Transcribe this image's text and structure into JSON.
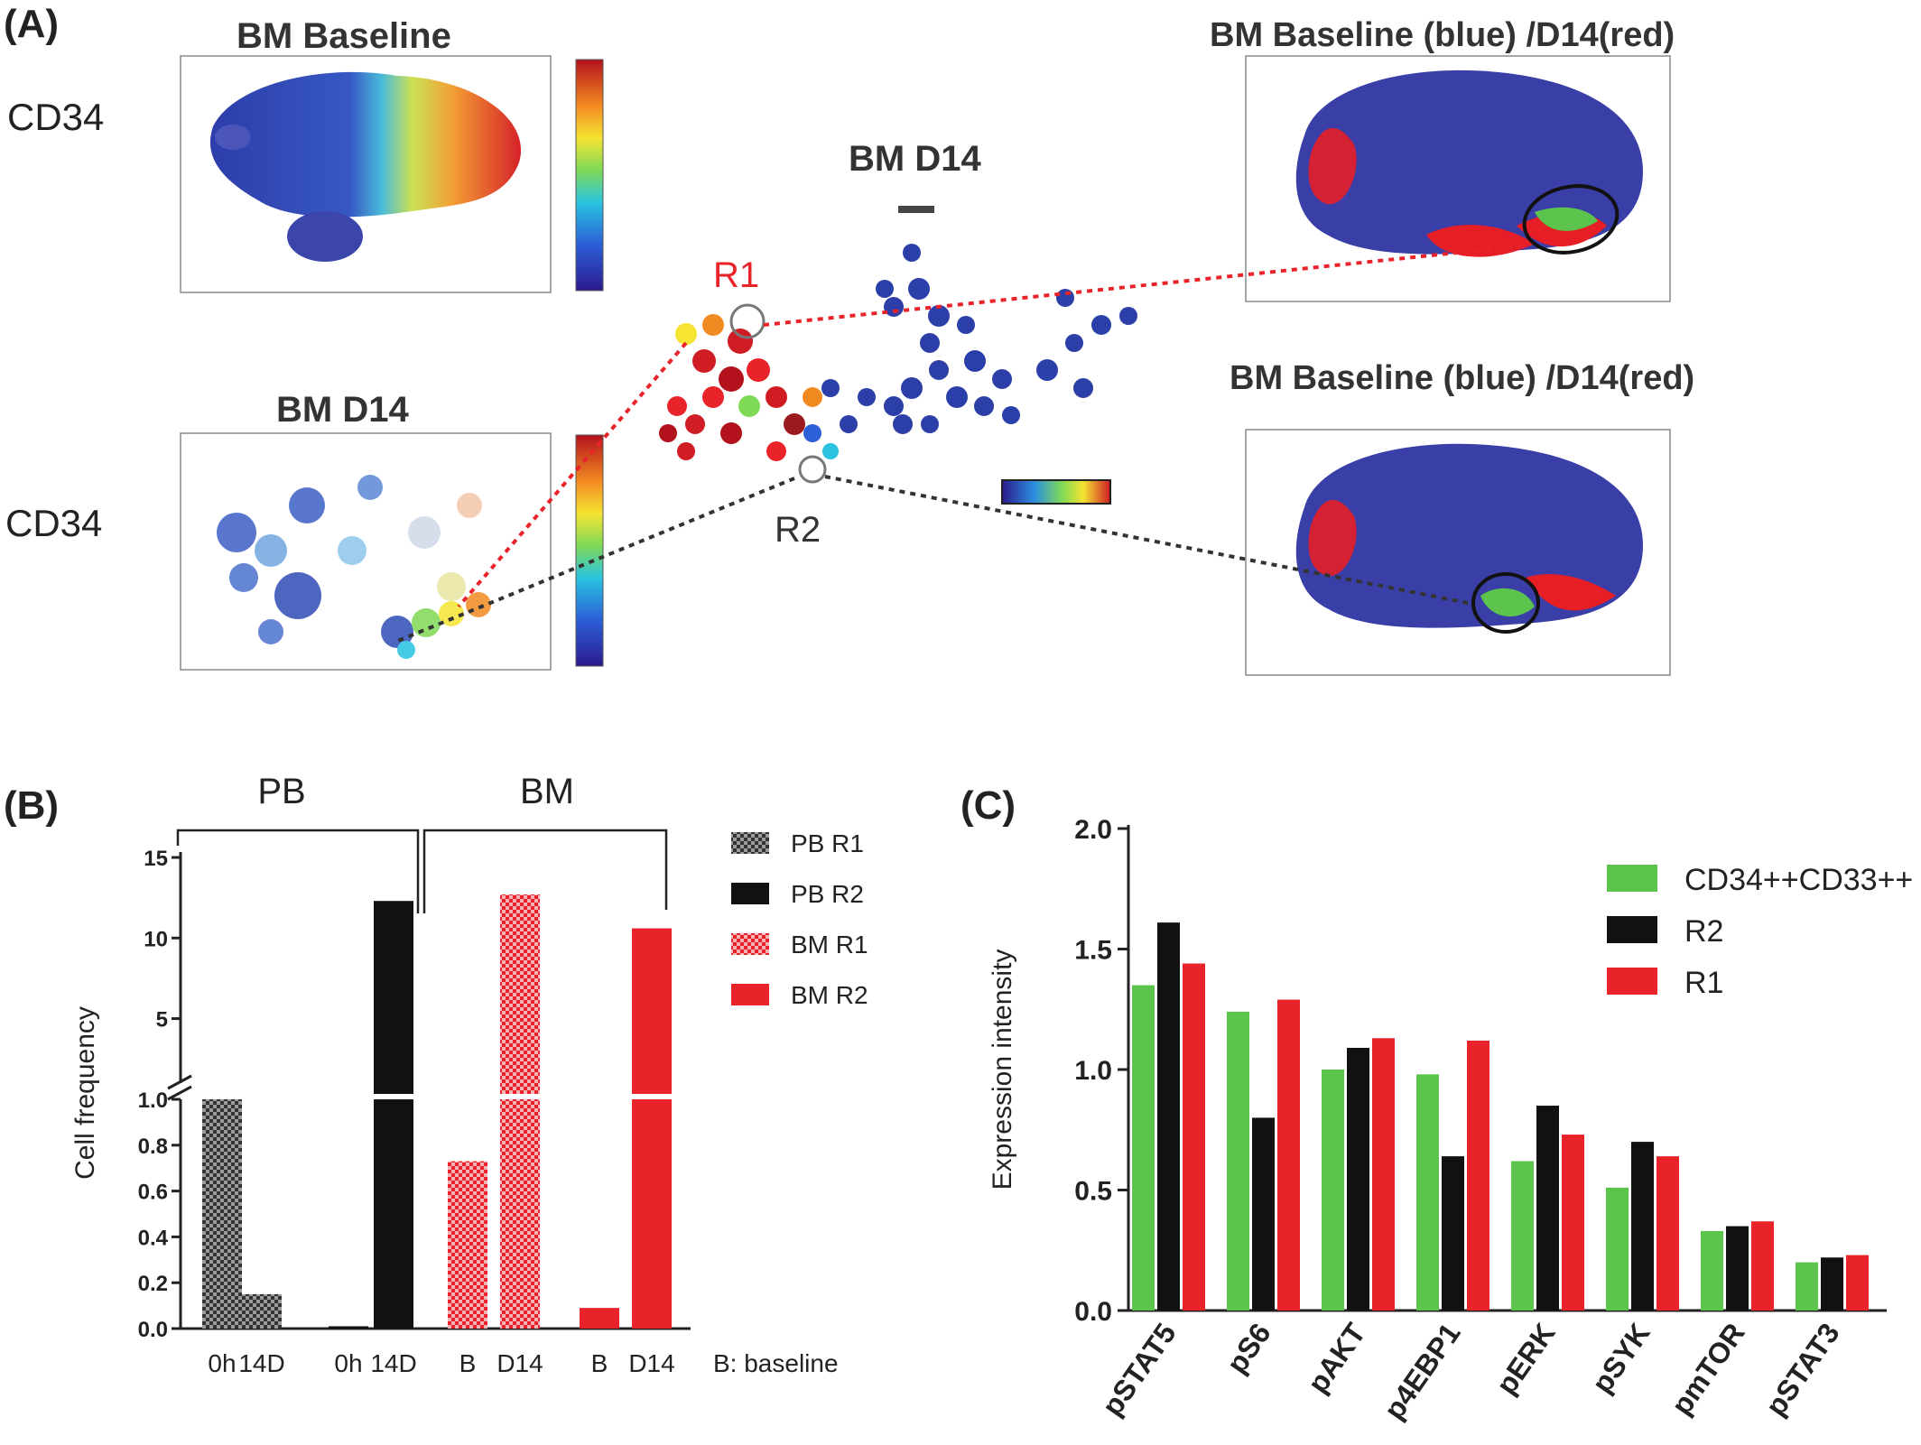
{
  "panel_a": {
    "label": "(A)",
    "tsne_baseline_title": "BM Baseline",
    "tsne_d14_title": "BM D14",
    "cd34_top": "CD34",
    "cd34_bottom": "CD34",
    "spade_title": "BM D14",
    "r1_label": "R1",
    "r2_label": "R2",
    "overlay_top_title": "BM Baseline (blue) /D14(red)",
    "overlay_bottom_title": "BM Baseline (blue) /D14(red)",
    "colors": {
      "r1": "#e8232a",
      "r2": "#333333",
      "baseline": "#3a3fa8",
      "d14": "#e61e26",
      "gate": "#5cc44c"
    }
  },
  "panel_b_label": "(B)",
  "panel_c_label": "(C)",
  "chart_data": [
    {
      "type": "bar",
      "panel": "B",
      "group_labels": [
        "PB",
        "BM"
      ],
      "categories": [
        "0h",
        "14D",
        "0h",
        "14D",
        "B",
        "D14",
        "B",
        "D14"
      ],
      "note": "B: baseline",
      "ylabel": "Cell frequency",
      "axis_break": true,
      "ylim_lower": [
        0,
        1.0
      ],
      "ylim_upper": [
        1,
        15
      ],
      "yticks_lower": [
        "0.0",
        "0.2",
        "0.4",
        "0.6",
        "0.8",
        "1.0"
      ],
      "yticks_upper": [
        "5",
        "10",
        "15"
      ],
      "series": [
        {
          "name": "PB R1",
          "color": "#444444",
          "pattern": "checker-dark",
          "values": [
            1.0,
            0.15,
            null,
            null,
            null,
            null,
            null,
            null
          ]
        },
        {
          "name": "PB R2",
          "color": "#111111",
          "pattern": "solid",
          "values": [
            null,
            null,
            0.01,
            12.3,
            null,
            null,
            null,
            null
          ]
        },
        {
          "name": "BM R1",
          "color": "#e8232a",
          "pattern": "checker-red",
          "values": [
            null,
            null,
            null,
            null,
            0.73,
            12.7,
            null,
            null
          ]
        },
        {
          "name": "BM R2",
          "color": "#e8232a",
          "pattern": "solid",
          "values": [
            null,
            null,
            null,
            null,
            null,
            null,
            0.09,
            10.6
          ]
        }
      ]
    },
    {
      "type": "bar",
      "panel": "C",
      "categories": [
        "pSTAT5",
        "pS6",
        "pAKT",
        "p4EBP1",
        "pERK",
        "pSYK",
        "pmTOR",
        "pSTAT3"
      ],
      "ylabel": "Expression intensity",
      "ylim": [
        0,
        2.0
      ],
      "yticks": [
        "0.0",
        "0.5",
        "1.0",
        "1.5",
        "2.0"
      ],
      "legend_position": "top-right",
      "series": [
        {
          "name": "CD34++CD33++",
          "color": "#5cc44c",
          "values": [
            1.35,
            1.24,
            1.0,
            0.98,
            0.62,
            0.51,
            0.33,
            0.2
          ]
        },
        {
          "name": "R2",
          "color": "#111111",
          "values": [
            1.61,
            0.8,
            1.09,
            0.64,
            0.85,
            0.7,
            0.35,
            0.22
          ]
        },
        {
          "name": "R1",
          "color": "#e8232a",
          "values": [
            1.44,
            1.29,
            1.13,
            1.12,
            0.73,
            0.64,
            0.37,
            0.23
          ]
        }
      ]
    }
  ]
}
